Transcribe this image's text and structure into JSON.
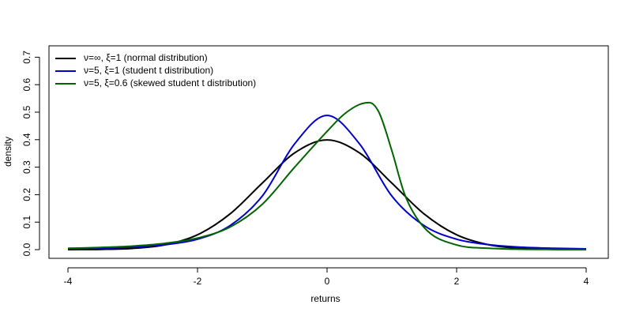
{
  "chart_data": {
    "type": "line",
    "xlabel": "returns",
    "ylabel": "density",
    "xlim": [
      -4,
      4
    ],
    "ylim": [
      0,
      0.7
    ],
    "x_ticks": [
      -4,
      -2,
      0,
      2,
      4
    ],
    "x_tick_labels": [
      "-4",
      "-2",
      "0",
      "2",
      "4"
    ],
    "y_ticks": [
      0.0,
      0.1,
      0.2,
      0.3,
      0.4,
      0.5,
      0.6,
      0.7
    ],
    "y_tick_labels": [
      "0.0",
      "0.1",
      "0.2",
      "0.3",
      "0.4",
      "0.5",
      "0.6",
      "0.7"
    ],
    "grid": false,
    "legend_position": "top-left",
    "series": [
      {
        "name": "ν=∞, ξ=1 (normal distribution)",
        "color": "#000000",
        "x": [
          -4,
          -3.5,
          -3,
          -2.5,
          -2,
          -1.5,
          -1,
          -0.5,
          0,
          0.5,
          1,
          1.5,
          2,
          2.5,
          3,
          3.5,
          4
        ],
        "y": [
          0.0001,
          0.0009,
          0.0044,
          0.0175,
          0.054,
          0.1295,
          0.242,
          0.352,
          0.399,
          0.352,
          0.242,
          0.1295,
          0.054,
          0.0175,
          0.0044,
          0.0009,
          0.0001
        ]
      },
      {
        "name": "ν=5, ξ=1 (student t distribution)",
        "color": "#0000cc",
        "x": [
          -4,
          -3.5,
          -3,
          -2.5,
          -2,
          -1.5,
          -1,
          -0.5,
          0,
          0.5,
          1,
          1.5,
          2,
          2.5,
          3,
          3.5,
          4
        ],
        "y": [
          0.003,
          0.005,
          0.009,
          0.018,
          0.038,
          0.087,
          0.195,
          0.385,
          0.488,
          0.385,
          0.195,
          0.087,
          0.038,
          0.018,
          0.009,
          0.005,
          0.003
        ]
      },
      {
        "name": "ν=5, ξ=0.6 (skewed student t distribution)",
        "color": "#006400",
        "x": [
          -4,
          -3.5,
          -3,
          -2.5,
          -2,
          -1.5,
          -1,
          -0.5,
          0,
          0.25,
          0.5,
          0.65,
          0.8,
          1.0,
          1.2,
          1.5,
          2,
          2.5,
          3,
          3.5,
          4
        ],
        "y": [
          0.005,
          0.008,
          0.013,
          0.023,
          0.042,
          0.082,
          0.165,
          0.3,
          0.43,
          0.49,
          0.528,
          0.535,
          0.5,
          0.36,
          0.2,
          0.08,
          0.017,
          0.005,
          0.0015,
          0.0005,
          0.0002
        ]
      }
    ]
  }
}
